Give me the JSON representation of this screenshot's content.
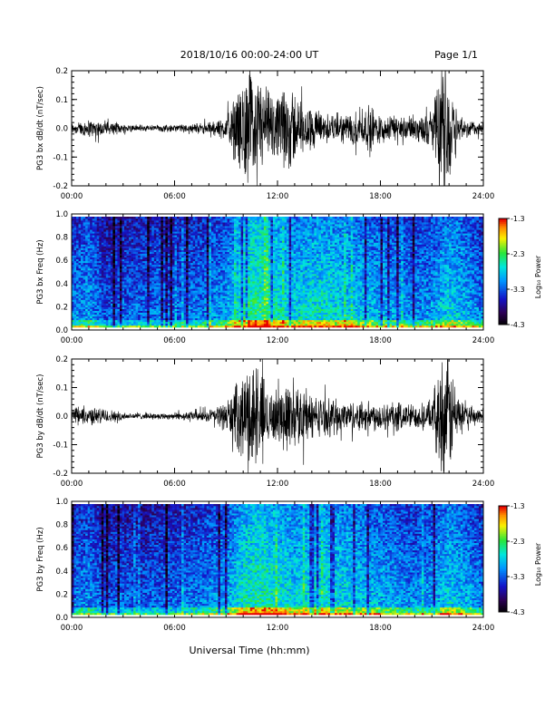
{
  "page": {
    "title": "2018/10/16  00:00-24:00 UT",
    "page_label": "Page 1/1",
    "xlabel": "Universal Time (hh:mm)"
  },
  "chart_data": [
    {
      "type": "line",
      "ylabel": "PG3 bx dB/dt (nT/sec)",
      "xlim": [
        0,
        24
      ],
      "ylim": [
        -0.2,
        0.2
      ],
      "x_ticks": [
        "00:00",
        "06:00",
        "12:00",
        "18:00",
        "24:00"
      ],
      "y_ticks": [
        "-0.2",
        "-0.1",
        "0.0",
        "0.1",
        "0.2"
      ],
      "envelope": {
        "x_hours": [
          0,
          1,
          2,
          3,
          4,
          5,
          6,
          7,
          8,
          9,
          10,
          10.5,
          11,
          11.5,
          12,
          12.5,
          13,
          13.5,
          14,
          15,
          16,
          17,
          17.5,
          18,
          19,
          20,
          21,
          21.5,
          22,
          22.5,
          23,
          24
        ],
        "amplitude": [
          0.02,
          0.03,
          0.025,
          0.015,
          0.012,
          0.012,
          0.012,
          0.015,
          0.02,
          0.04,
          0.16,
          0.2,
          0.17,
          0.12,
          0.1,
          0.16,
          0.13,
          0.08,
          0.07,
          0.05,
          0.05,
          0.06,
          0.08,
          0.05,
          0.04,
          0.04,
          0.06,
          0.2,
          0.2,
          0.06,
          0.03,
          0.02
        ]
      }
    },
    {
      "type": "heatmap",
      "ylabel": "PG3 bx Freq (Hz)",
      "xlim": [
        0,
        24
      ],
      "ylim": [
        0,
        1.0
      ],
      "x_ticks": [
        "00:00",
        "06:00",
        "12:00",
        "18:00",
        "24:00"
      ],
      "y_ticks": [
        "0.0",
        "0.2",
        "0.4",
        "0.6",
        "0.8",
        "1.0"
      ],
      "colorbar": {
        "label": "Log₁₀ Power",
        "range": [
          -4.3,
          -1.3
        ],
        "ticks": [
          "-1.3",
          "-2.3",
          "-3.3",
          "-4.3"
        ]
      },
      "activity_profile": [
        0.45,
        0.55,
        0.35,
        0.4,
        0.4,
        0.45,
        0.4,
        0.45,
        0.5,
        0.55,
        0.85,
        0.9,
        0.8,
        0.7,
        0.75,
        0.75,
        0.7,
        0.65,
        0.6,
        0.55,
        0.5,
        0.55,
        0.7,
        0.6,
        0.45
      ]
    },
    {
      "type": "line",
      "ylabel": "PG3 by dB/dt (nT/sec)",
      "xlim": [
        0,
        24
      ],
      "ylim": [
        -0.2,
        0.2
      ],
      "x_ticks": [
        "00:00",
        "06:00",
        "12:00",
        "18:00",
        "24:00"
      ],
      "y_ticks": [
        "-0.2",
        "-0.1",
        "0.0",
        "0.1",
        "0.2"
      ],
      "envelope": {
        "x_hours": [
          0,
          1,
          2,
          3,
          4,
          5,
          6,
          7,
          8,
          9,
          10,
          10.5,
          11,
          11.5,
          12,
          12.5,
          13,
          13.5,
          14,
          15,
          16,
          17,
          18,
          19,
          20,
          21,
          21.5,
          22,
          22.5,
          23,
          24
        ],
        "amplitude": [
          0.03,
          0.03,
          0.025,
          0.012,
          0.01,
          0.01,
          0.012,
          0.015,
          0.02,
          0.05,
          0.14,
          0.2,
          0.15,
          0.1,
          0.08,
          0.13,
          0.1,
          0.1,
          0.07,
          0.06,
          0.05,
          0.05,
          0.05,
          0.05,
          0.04,
          0.05,
          0.2,
          0.2,
          0.07,
          0.03,
          0.03
        ]
      }
    },
    {
      "type": "heatmap",
      "ylabel": "PG3 by Freq (Hz)",
      "xlim": [
        0,
        24
      ],
      "ylim": [
        0,
        1.0
      ],
      "x_ticks": [
        "00:00",
        "06:00",
        "12:00",
        "18:00",
        "24:00"
      ],
      "y_ticks": [
        "0.0",
        "0.2",
        "0.4",
        "0.6",
        "0.8",
        "1.0"
      ],
      "colorbar": {
        "label": "Log₁₀ Power",
        "range": [
          -4.3,
          -1.3
        ],
        "ticks": [
          "-1.3",
          "-2.3",
          "-3.3",
          "-4.3"
        ]
      },
      "activity_profile": [
        0.45,
        0.5,
        0.35,
        0.4,
        0.35,
        0.4,
        0.4,
        0.45,
        0.5,
        0.55,
        0.8,
        0.85,
        0.8,
        0.7,
        0.75,
        0.75,
        0.7,
        0.65,
        0.6,
        0.55,
        0.5,
        0.55,
        0.7,
        0.6,
        0.45
      ]
    }
  ]
}
